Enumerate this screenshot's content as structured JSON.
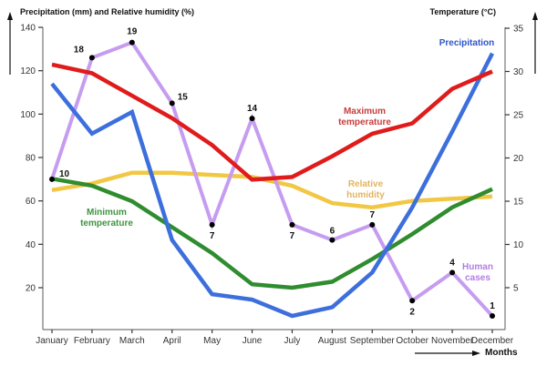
{
  "chart_data": {
    "type": "line",
    "left_axis": {
      "title": "Precipitation (mm) and Relative humidity (%)",
      "range": [
        1,
        140
      ],
      "ticks": [
        20,
        40,
        60,
        80,
        100,
        120,
        140
      ]
    },
    "right_axis": {
      "title": "Temperature (°C)",
      "range": [
        1.5,
        35
      ],
      "ticks": [
        5,
        10,
        15,
        20,
        25,
        30,
        35
      ]
    },
    "x_axis": {
      "title": "Months",
      "categories": [
        "January",
        "February",
        "March",
        "April",
        "May",
        "June",
        "July",
        "August",
        "September",
        "October",
        "November",
        "December"
      ]
    },
    "grid": false,
    "series": [
      {
        "name": "Precipitation",
        "axis": "left",
        "color": "#3d6fdc",
        "label_lines": [
          "Precipitation"
        ],
        "values": [
          114,
          91,
          101,
          42,
          17,
          14.5,
          7,
          11,
          27,
          57,
          92,
          128
        ]
      },
      {
        "name": "Maximum temperature",
        "axis": "right",
        "color": "#e01b1b",
        "label_lines": [
          "Maximum",
          "temperature"
        ],
        "values": [
          30.8,
          29.8,
          27.2,
          24.6,
          21.5,
          17.5,
          17.8,
          20.2,
          22.8,
          24,
          28,
          30
        ]
      },
      {
        "name": "Relative humidity",
        "axis": "left",
        "color": "#f2c744",
        "label_lines": [
          "Relative",
          "humidity"
        ],
        "label_color": "#e3b45e",
        "values": [
          65,
          68,
          73,
          73,
          72,
          71,
          67,
          59,
          57,
          60,
          61,
          62
        ]
      },
      {
        "name": "Minimum temperature",
        "axis": "right",
        "color": "#2f8c2f",
        "label_lines": [
          "Minimum",
          "temperature"
        ],
        "label_color": "#3e953e",
        "values": [
          17.6,
          16.8,
          15,
          12,
          9,
          5.4,
          5,
          5.7,
          8.3,
          11.2,
          14.3,
          16.4
        ]
      },
      {
        "name": "Human cases",
        "axis": "left",
        "color": "#c69cf0",
        "label_lines": [
          "Human",
          "cases"
        ],
        "label_color": "#b27ee6",
        "values": [
          70,
          126,
          133,
          105,
          49,
          98,
          49,
          42,
          49,
          14,
          27,
          7
        ],
        "case_counts": [
          10,
          18,
          19,
          15,
          7,
          14,
          7,
          6,
          7,
          2,
          4,
          1
        ]
      }
    ]
  }
}
